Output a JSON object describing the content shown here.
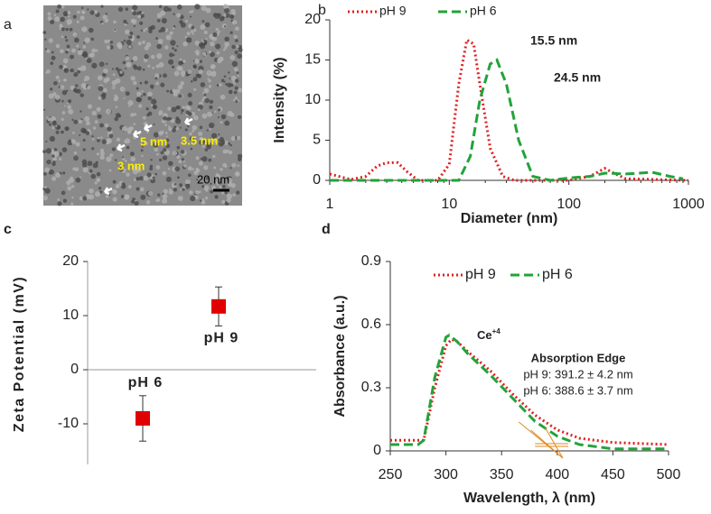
{
  "chart_data": [
    {
      "type": "image",
      "panel": "a",
      "labels": [
        "5 nm",
        "3.5 nm",
        "3 nm"
      ],
      "scale_bar": "20 nm"
    },
    {
      "type": "line",
      "panel": "b",
      "xlabel": "Diameter (nm)",
      "ylabel": "Intensity (%)",
      "log_x": true,
      "xlim": [
        1,
        1000
      ],
      "xticks": [
        1,
        10,
        100,
        1000
      ],
      "ylim": [
        0,
        20
      ],
      "yticks": [
        0,
        5,
        10,
        15,
        20
      ],
      "series": [
        {
          "name": "pH 9",
          "color": "#e02020",
          "style": "dotted",
          "x": [
            1,
            1.5,
            2,
            2.5,
            3,
            3.7,
            4.5,
            5.5,
            8,
            10,
            12,
            14,
            16,
            18,
            22,
            28,
            35,
            100,
            150,
            200,
            230,
            300,
            1000
          ],
          "values": [
            0.8,
            0.1,
            0.5,
            1.8,
            2.2,
            2.2,
            1,
            0,
            0,
            2,
            12,
            17.5,
            17,
            12,
            4,
            0.5,
            0,
            0,
            0.5,
            1.5,
            1,
            0.2,
            0
          ]
        },
        {
          "name": "pH 6",
          "color": "#22a33a",
          "style": "dashed",
          "x": [
            1,
            12,
            15,
            18,
            22,
            25,
            30,
            38,
            50,
            70,
            100,
            150,
            200,
            300,
            500,
            700,
            900
          ],
          "values": [
            0,
            0,
            3,
            10,
            14.5,
            15,
            12,
            5,
            0.5,
            0,
            0.3,
            0.5,
            0.9,
            0.8,
            1,
            0.5,
            0.2
          ]
        }
      ],
      "annotations": [
        "15.5 nm",
        "24.5 nm"
      ]
    },
    {
      "type": "scatter",
      "panel": "c",
      "ylabel": "Zeta Potential (mV)",
      "categories": [
        "pH 6",
        "pH 9"
      ],
      "values": [
        -9,
        11.7
      ],
      "errors": [
        4.2,
        3.6
      ],
      "color": "#e00000",
      "ylim": [
        -17.5,
        20
      ],
      "yticks": [
        -10,
        0,
        10,
        20
      ]
    },
    {
      "type": "line",
      "panel": "d",
      "xlabel": "Wavelength, λ (nm)",
      "ylabel": "Absorbance (a.u.)",
      "log_x": false,
      "xlim": [
        250,
        500
      ],
      "xticks": [
        250,
        300,
        350,
        400,
        450,
        500
      ],
      "ylim": [
        0,
        0.9
      ],
      "yticks": [
        0,
        0.3,
        0.6,
        0.9
      ],
      "series": [
        {
          "name": "pH 9",
          "color": "#e02020",
          "style": "dotted",
          "x": [
            250,
            270,
            280,
            290,
            300,
            305,
            310,
            320,
            340,
            360,
            380,
            400,
            420,
            450,
            500
          ],
          "values": [
            0.05,
            0.05,
            0.05,
            0.3,
            0.5,
            0.53,
            0.52,
            0.47,
            0.38,
            0.27,
            0.17,
            0.1,
            0.06,
            0.04,
            0.03
          ]
        },
        {
          "name": "pH 6",
          "color": "#22a33a",
          "style": "dashed",
          "x": [
            250,
            275,
            280,
            290,
            300,
            303,
            310,
            320,
            340,
            360,
            380,
            400,
            420,
            450,
            500
          ],
          "values": [
            0.03,
            0.03,
            0.05,
            0.35,
            0.54,
            0.55,
            0.52,
            0.46,
            0.36,
            0.25,
            0.14,
            0.07,
            0.03,
            0.01,
            0.01
          ]
        }
      ],
      "annotations": [
        "Ce",
        "+4",
        "Absorption Edge",
        "pH 9: 391.2 ± 4.2 nm",
        "pH 6: 388.6 ± 3.7 nm"
      ]
    }
  ]
}
